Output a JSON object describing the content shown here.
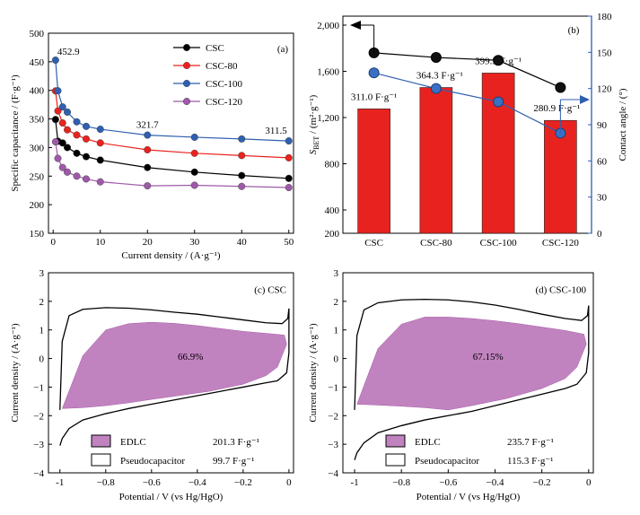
{
  "chart_data": [
    {
      "panel": "(a)",
      "type": "line",
      "xlabel": "Current density / (A·g⁻¹)",
      "ylabel": "Specific capacitance / (F·g⁻¹)",
      "xlim": [
        -1,
        51
      ],
      "ylim": [
        150,
        500
      ],
      "xticks": [
        0,
        10,
        20,
        30,
        40,
        50
      ],
      "yticks": [
        150,
        200,
        250,
        300,
        350,
        400,
        450,
        500
      ],
      "x": [
        0.5,
        1,
        2,
        3,
        5,
        7,
        10,
        20,
        30,
        40,
        50
      ],
      "series": [
        {
          "name": "CSC",
          "color": "#000000",
          "values": [
            349,
            311,
            308,
            300,
            290,
            284,
            278,
            265,
            257,
            251,
            246
          ]
        },
        {
          "name": "CSC-80",
          "color": "#e8231f",
          "values": [
            399,
            364,
            343,
            331,
            322,
            315,
            308,
            296,
            290,
            286,
            282
          ]
        },
        {
          "name": "CSC-100",
          "color": "#2f5fb0",
          "values": [
            452.9,
            399.3,
            371,
            362,
            345,
            337,
            332,
            321.7,
            318,
            315,
            311.5
          ]
        },
        {
          "name": "CSC-120",
          "color": "#9e5aa8",
          "values": [
            310,
            281,
            265,
            257,
            250,
            245,
            240,
            233,
            234,
            232,
            230
          ]
        }
      ],
      "annotations": [
        {
          "text": "452.9",
          "x": 0.5,
          "y": 452.9
        },
        {
          "text": "321.7",
          "x": 20,
          "y": 321.7
        },
        {
          "text": "311.5",
          "x": 50,
          "y": 311.5
        }
      ],
      "legend": "top-right"
    },
    {
      "panel": "(b)",
      "type": "bar",
      "categories": [
        "CSC",
        "CSC-80",
        "CSC-100",
        "CSC-120"
      ],
      "ylabel": "S_BET / (m²·g⁻¹)",
      "ylabel_main": "S",
      "ylabel_sub": "BET",
      "ylabel_rest": " / (m²·g⁻¹)",
      "y2label": "Contact angle / (°)",
      "ylim": [
        200,
        2000
      ],
      "y2lim": [
        0,
        180
      ],
      "yticks": [
        200,
        400,
        800,
        1200,
        1600,
        2000
      ],
      "y2ticks": [
        0,
        30,
        60,
        90,
        120,
        150,
        180
      ],
      "bar_color": "#e8231f",
      "bar_values": [
        1275,
        1460,
        1585,
        1175
      ],
      "bar_labels": [
        "311.0 F·g⁻¹",
        "364.3 F·g⁻¹",
        "399.3 F·g⁻¹",
        "280.9 F·g⁻¹"
      ],
      "series": [
        {
          "name": "S_BET",
          "axis": "left",
          "color": "#000000",
          "values": [
            1760,
            1720,
            1695,
            1460
          ]
        },
        {
          "name": "Contact angle",
          "axis": "right",
          "color": "#2f5fb0",
          "values": [
            133,
            120,
            109,
            83
          ]
        }
      ]
    },
    {
      "panel": "(c) CSC",
      "type": "area",
      "xlabel": "Potential / V (vs Hg/HgO)",
      "ylabel": "Current density / (A·g⁻¹)",
      "xlim": [
        -1.05,
        0.02
      ],
      "ylim": [
        -4,
        3
      ],
      "xticks": [
        -1.0,
        -0.8,
        -0.6,
        -0.4,
        -0.2,
        0.0
      ],
      "yticks": [
        -4,
        -3,
        -2,
        -1,
        0,
        1,
        2,
        3
      ],
      "percentage": "66.9%",
      "legend": [
        {
          "name": "EDLC",
          "value": "201.3 F·g⁻¹",
          "color": "#c183c0"
        },
        {
          "name": "Pseudocapacitor",
          "value": "99.7 F·g⁻¹",
          "color": "#ffffff"
        }
      ],
      "cv_upper": [
        [
          -1.0,
          -1.8
        ],
        [
          -0.99,
          0.6
        ],
        [
          -0.96,
          1.5
        ],
        [
          -0.9,
          1.72
        ],
        [
          -0.8,
          1.78
        ],
        [
          -0.7,
          1.76
        ],
        [
          -0.6,
          1.7
        ],
        [
          -0.5,
          1.62
        ],
        [
          -0.4,
          1.55
        ],
        [
          -0.3,
          1.45
        ],
        [
          -0.2,
          1.35
        ],
        [
          -0.1,
          1.25
        ],
        [
          -0.03,
          1.22
        ],
        [
          -0.005,
          1.4
        ],
        [
          0.0,
          1.75
        ]
      ],
      "cv_lower": [
        [
          0.0,
          1.75
        ],
        [
          0.0,
          0.2
        ],
        [
          -0.01,
          -0.5
        ],
        [
          -0.05,
          -0.78
        ],
        [
          -0.1,
          -0.85
        ],
        [
          -0.2,
          -1.0
        ],
        [
          -0.3,
          -1.15
        ],
        [
          -0.4,
          -1.3
        ],
        [
          -0.5,
          -1.45
        ],
        [
          -0.6,
          -1.6
        ],
        [
          -0.7,
          -1.75
        ],
        [
          -0.8,
          -1.93
        ],
        [
          -0.9,
          -2.15
        ],
        [
          -0.96,
          -2.45
        ],
        [
          -0.99,
          -2.8
        ],
        [
          -1.0,
          -3.05
        ]
      ],
      "edlc_polygon": [
        [
          -0.99,
          -1.75
        ],
        [
          -0.9,
          0.1
        ],
        [
          -0.8,
          1.0
        ],
        [
          -0.7,
          1.22
        ],
        [
          -0.6,
          1.27
        ],
        [
          -0.5,
          1.23
        ],
        [
          -0.4,
          1.15
        ],
        [
          -0.3,
          1.05
        ],
        [
          -0.2,
          0.95
        ],
        [
          -0.1,
          0.88
        ],
        [
          -0.02,
          0.82
        ],
        [
          -0.01,
          0.5
        ],
        [
          -0.05,
          -0.3
        ],
        [
          -0.1,
          -0.6
        ],
        [
          -0.2,
          -0.9
        ],
        [
          -0.35,
          -1.15
        ],
        [
          -0.5,
          -1.32
        ],
        [
          -0.6,
          -1.43
        ],
        [
          -0.7,
          -1.55
        ],
        [
          -0.8,
          -1.65
        ],
        [
          -0.9,
          -1.72
        ]
      ]
    },
    {
      "panel": "(d) CSC-100",
      "type": "area",
      "xlabel": "Potential / V (vs Hg/HgO)",
      "ylabel": "Current density / (A·g⁻¹)",
      "xlim": [
        -1.05,
        0.02
      ],
      "ylim": [
        -4,
        3
      ],
      "xticks": [
        -1.0,
        -0.8,
        -0.6,
        -0.4,
        -0.2,
        0.0
      ],
      "yticks": [
        -4,
        -3,
        -2,
        -1,
        0,
        1,
        2,
        3
      ],
      "percentage": "67.15%",
      "legend": [
        {
          "name": "EDLC",
          "value": "235.7 F·g⁻¹",
          "color": "#c183c0"
        },
        {
          "name": "Pseudocapacitor",
          "value": "115.3 F·g⁻¹",
          "color": "#ffffff"
        }
      ],
      "cv_upper": [
        [
          -1.0,
          -1.8
        ],
        [
          -0.99,
          0.8
        ],
        [
          -0.96,
          1.7
        ],
        [
          -0.9,
          1.95
        ],
        [
          -0.8,
          2.05
        ],
        [
          -0.7,
          2.07
        ],
        [
          -0.6,
          2.05
        ],
        [
          -0.5,
          1.98
        ],
        [
          -0.4,
          1.87
        ],
        [
          -0.3,
          1.72
        ],
        [
          -0.2,
          1.55
        ],
        [
          -0.1,
          1.4
        ],
        [
          -0.03,
          1.33
        ],
        [
          -0.005,
          1.5
        ],
        [
          0.0,
          1.85
        ]
      ],
      "cv_lower": [
        [
          0.0,
          1.85
        ],
        [
          0.0,
          0.2
        ],
        [
          -0.01,
          -0.5
        ],
        [
          -0.05,
          -0.9
        ],
        [
          -0.1,
          -1.05
        ],
        [
          -0.2,
          -1.25
        ],
        [
          -0.3,
          -1.45
        ],
        [
          -0.4,
          -1.65
        ],
        [
          -0.5,
          -1.85
        ],
        [
          -0.6,
          -2.0
        ],
        [
          -0.7,
          -2.15
        ],
        [
          -0.8,
          -2.35
        ],
        [
          -0.9,
          -2.6
        ],
        [
          -0.96,
          -2.95
        ],
        [
          -0.99,
          -3.3
        ],
        [
          -1.0,
          -3.55
        ]
      ],
      "edlc_polygon": [
        [
          -0.99,
          -1.6
        ],
        [
          -0.9,
          0.35
        ],
        [
          -0.8,
          1.2
        ],
        [
          -0.7,
          1.45
        ],
        [
          -0.6,
          1.45
        ],
        [
          -0.5,
          1.4
        ],
        [
          -0.4,
          1.32
        ],
        [
          -0.3,
          1.22
        ],
        [
          -0.2,
          1.1
        ],
        [
          -0.1,
          0.98
        ],
        [
          -0.02,
          0.85
        ],
        [
          -0.01,
          0.5
        ],
        [
          -0.05,
          -0.3
        ],
        [
          -0.1,
          -0.7
        ],
        [
          -0.2,
          -1.05
        ],
        [
          -0.35,
          -1.4
        ],
        [
          -0.5,
          -1.65
        ],
        [
          -0.6,
          -1.8
        ],
        [
          -0.7,
          -1.72
        ],
        [
          -0.8,
          -1.67
        ],
        [
          -0.9,
          -1.63
        ]
      ]
    }
  ]
}
